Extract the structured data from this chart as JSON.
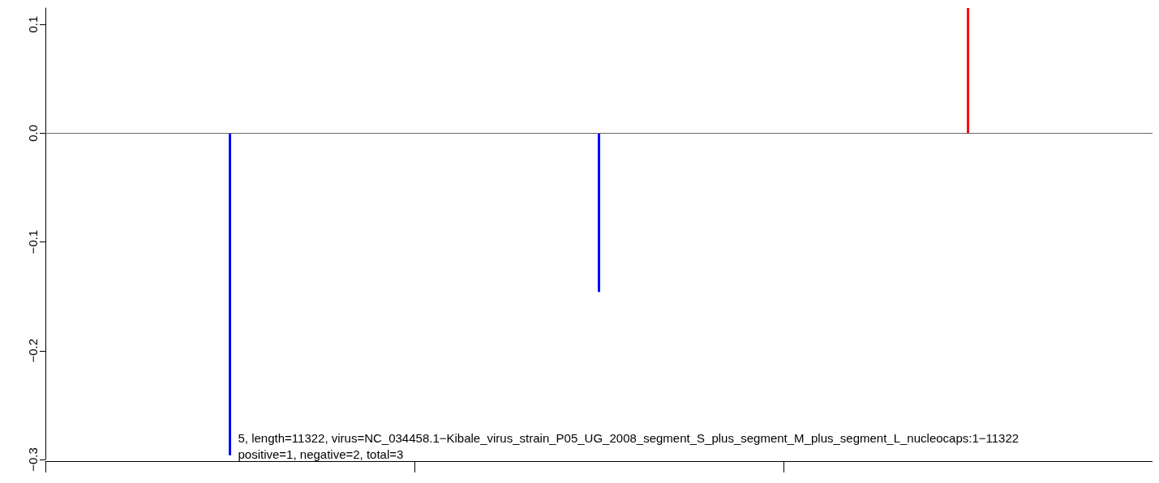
{
  "chart_data": {
    "type": "bar",
    "categories": [
      null,
      null,
      null
    ],
    "series": [
      {
        "values": [
          -0.296,
          -0.146,
          0.115
        ],
        "colors": [
          "#0000ff",
          "#0000ff",
          "#ff0000"
        ]
      }
    ],
    "ylim": [
      -0.3,
      0.115
    ],
    "yticks": [
      {
        "value": -0.3,
        "label": "−0.3"
      },
      {
        "value": -0.2,
        "label": "−0.2"
      },
      {
        "value": -0.1,
        "label": "−0.1"
      },
      {
        "value": 0,
        "label": "0.0"
      },
      {
        "value": 0.1,
        "label": "0.1"
      }
    ],
    "ref_lines": [
      {
        "axis": "y",
        "value": 0,
        "color": "#666666"
      }
    ],
    "annotations": [
      "5, length=11322, virus=NC_034458.1−Kibale_virus_strain_P05_UG_2008_segment_S_plus_segment_M_plus_segment_L_nucleocaps:1−11322",
      "positive=1, negative=2, total=3"
    ],
    "grid": false
  }
}
